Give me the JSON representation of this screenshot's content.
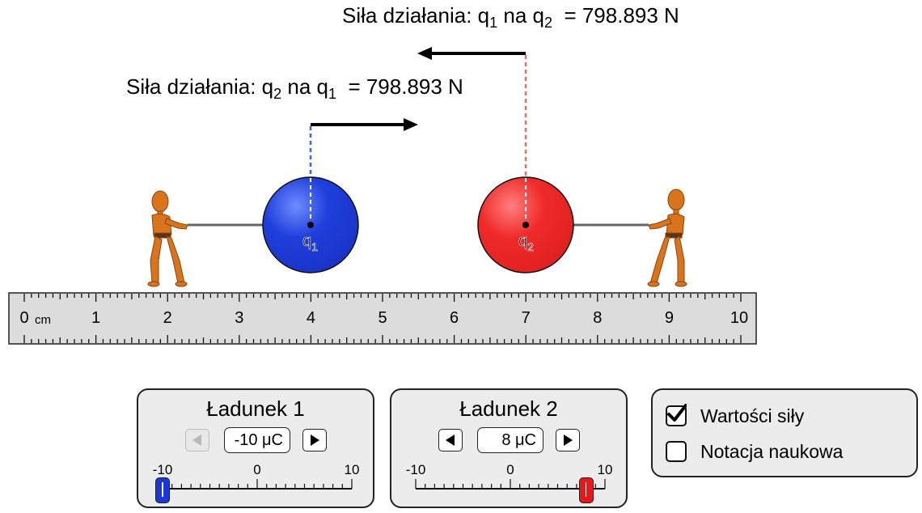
{
  "forces": {
    "q1_on_q2": {
      "prefix": "Siła działania: q",
      "sub1": "1",
      "middle": " na q",
      "sub2": "2",
      "value": "= 798.893 N"
    },
    "q2_on_q1": {
      "prefix": "Siła działania: q",
      "sub1": "2",
      "middle": " na q",
      "sub2": "1",
      "value": "= 798.893 N"
    }
  },
  "charges": {
    "q1": {
      "label": "q",
      "sub": "1",
      "color": "#1f3fdb",
      "position_cm": 4
    },
    "q2": {
      "label": "q",
      "sub": "2",
      "color": "#f02a2a",
      "position_cm": 7
    }
  },
  "ruler": {
    "unit": "cm",
    "zero_label": "0",
    "labels": [
      "1",
      "2",
      "3",
      "4",
      "5",
      "6",
      "7",
      "8",
      "9",
      "10"
    ]
  },
  "panel1": {
    "title": "Ładunek 1",
    "value": "-10 μC",
    "charge_value": -10,
    "min_label": "-10",
    "mid_label": "0",
    "max_label": "10",
    "thumb_color": "#1a35d8",
    "left_enabled": false,
    "right_enabled": true
  },
  "panel2": {
    "title": "Ładunek 2",
    "value": "8 μC",
    "charge_value": 8,
    "min_label": "-10",
    "mid_label": "0",
    "max_label": "10",
    "thumb_color": "#e81818",
    "left_enabled": true,
    "right_enabled": true
  },
  "options": {
    "force_values": {
      "label": "Wartości siły",
      "checked": true
    },
    "scientific_notation": {
      "label": "Notacja naukowa",
      "checked": false
    }
  }
}
